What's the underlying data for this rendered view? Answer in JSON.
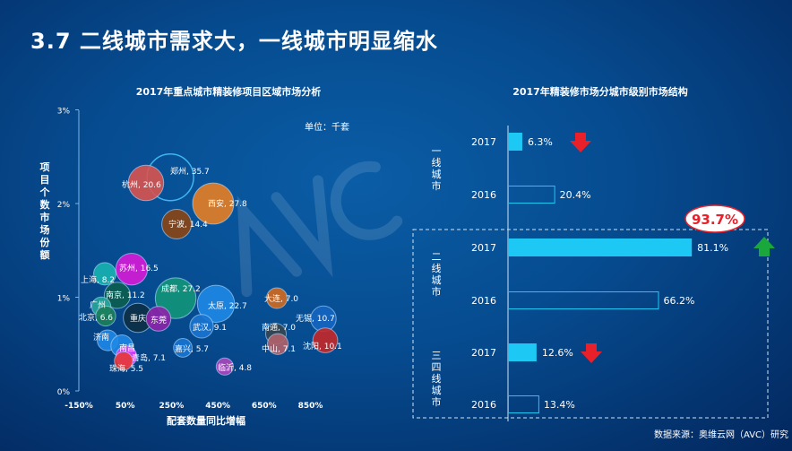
{
  "title": "3.7 二线城市需求大，一线城市明显缩水",
  "watermark": "AVC 奥维云网 ALL VIEW CLOUD",
  "source": "数据来源：奥维云网（AVC）研究",
  "chart_data": [
    {
      "type": "scatter",
      "subtype": "bubble",
      "title": "2017年重点城市精装修项目区域市场分析",
      "xlabel": "配套数量同比增幅",
      "ylabel": "项目个数市场份额",
      "unit_note": "单位：千套",
      "xlim": [
        -150,
        1000
      ],
      "ylim": [
        0,
        3
      ],
      "xticks": [
        "-150%",
        "50%",
        "250%",
        "450%",
        "650%",
        "850%"
      ],
      "xtick_values": [
        -150,
        50,
        250,
        450,
        650,
        850
      ],
      "yticks": [
        "0%",
        "1%",
        "2%",
        "3%"
      ],
      "ytick_values": [
        0,
        1,
        2,
        3
      ],
      "points": [
        {
          "city": "郑州",
          "x": 245,
          "y": 2.28,
          "size": 35.7,
          "color": "transparent",
          "stroke": "#3fb6f0",
          "label": "郑州, 35.7"
        },
        {
          "city": "杭州",
          "x": 140,
          "y": 2.22,
          "size": 20.6,
          "color": "#d9534f",
          "label": "杭州, 20.6"
        },
        {
          "city": "西安",
          "x": 430,
          "y": 2.0,
          "size": 27.8,
          "color": "#e67e22",
          "label": "西安, 27.8"
        },
        {
          "city": "宁波",
          "x": 272,
          "y": 1.78,
          "size": 14.4,
          "color": "#8b4513",
          "label": "宁波, 14.4"
        },
        {
          "city": "苏州",
          "x": 78,
          "y": 1.3,
          "size": 16.5,
          "color": "#d81bd8",
          "label": "苏州, 16.5"
        },
        {
          "city": "上海",
          "x": -38,
          "y": 1.25,
          "size": 8.2,
          "color": "#17b3b0",
          "label": "上海, 8.2"
        },
        {
          "city": "南京",
          "x": 16,
          "y": 1.02,
          "size": 11.2,
          "color": "#0b5e4e",
          "label": "南京, 11.2"
        },
        {
          "city": "成都",
          "x": 268,
          "y": 0.99,
          "size": 27.2,
          "color": "#13957a",
          "label": "成都, 27.2"
        },
        {
          "city": "太原",
          "x": 442,
          "y": 0.93,
          "size": 22.7,
          "color": "#1e88e5",
          "label": "太原, 22.7"
        },
        {
          "city": "大连",
          "x": 705,
          "y": 0.99,
          "size": 7.0,
          "color": "#d2691e",
          "label": "大连, 7.0"
        },
        {
          "city": "广州",
          "x": -53,
          "y": 0.9,
          "size": 6.0,
          "color": "#26a69a",
          "label": "广州"
        },
        {
          "city": "北京",
          "x": -34,
          "y": 0.8,
          "size": 6.6,
          "color": "#1b7f5a",
          "label": "北京, 6.6"
        },
        {
          "city": "重庆",
          "x": 105,
          "y": 0.78,
          "size": 14.0,
          "color": "#0d2f45",
          "label": "重庆"
        },
        {
          "city": "东莞",
          "x": 194,
          "y": 0.77,
          "size": 10.0,
          "color": "#8e24aa",
          "label": "东莞"
        },
        {
          "city": "武汉",
          "x": 380,
          "y": 0.69,
          "size": 9.1,
          "color": "#1976d2",
          "label": "武汉, 9.1"
        },
        {
          "city": "无锡",
          "x": 906,
          "y": 0.77,
          "size": 10.7,
          "color": "#1565c0",
          "label": "无锡, 10.7"
        },
        {
          "city": "沈阳",
          "x": 914,
          "y": 0.54,
          "size": 10.1,
          "color": "#c62828",
          "label": "沈阳, 10.1"
        },
        {
          "city": "南通",
          "x": 701,
          "y": 0.61,
          "size": 7.0,
          "color": "#37474f",
          "label": "南通, 7.0"
        },
        {
          "city": "中山",
          "x": 709,
          "y": 0.5,
          "size": 7.1,
          "color": "#b0626a",
          "label": "中山, 7.1"
        },
        {
          "city": "济南",
          "x": -26,
          "y": 0.54,
          "size": 7.0,
          "color": "#1e88e5",
          "label": "济南"
        },
        {
          "city": "南昌",
          "x": 36,
          "y": 0.48,
          "size": 8.0,
          "color": "#1e88e5",
          "label": "南昌"
        },
        {
          "city": "嘉兴",
          "x": 299,
          "y": 0.46,
          "size": 5.7,
          "color": "#1976d2",
          "label": "嘉兴, 5.7"
        },
        {
          "city": "青岛",
          "x": 55,
          "y": 0.37,
          "size": 7.1,
          "color": "#e040fb",
          "label": "青岛, 7.1"
        },
        {
          "city": "珠海",
          "x": 43,
          "y": 0.32,
          "size": 5.5,
          "color": "#e53935",
          "label": "珠海, 5.5"
        },
        {
          "city": "临沂",
          "x": 480,
          "y": 0.26,
          "size": 4.8,
          "color": "#ab47bc",
          "label": "临沂, 4.8"
        }
      ]
    },
    {
      "type": "bar",
      "orientation": "horizontal",
      "title": "2017年精装修市场分城市级别市场结构",
      "xlim": [
        0,
        100
      ],
      "groups": [
        {
          "name": "一线城市",
          "rows": [
            {
              "year": "2017",
              "value": 6.3,
              "label": "6.3%",
              "trend": "down"
            },
            {
              "year": "2016",
              "value": 20.4,
              "label": "20.4%"
            }
          ]
        },
        {
          "name": "二线城市",
          "rows": [
            {
              "year": "2017",
              "value": 81.1,
              "label": "81.1%",
              "trend": "up"
            },
            {
              "year": "2016",
              "value": 66.2,
              "label": "66.2%"
            }
          ]
        },
        {
          "name": "三四线城市",
          "rows": [
            {
              "year": "2017",
              "value": 12.6,
              "label": "12.6%",
              "trend": "down"
            },
            {
              "year": "2016",
              "value": 13.4,
              "label": "13.4%"
            }
          ]
        }
      ],
      "callout": "93.7%",
      "colors": {
        "bar2017": "#1ec8f5",
        "bar2016_stroke": "#1ec8f5",
        "down": "#e8202a",
        "up": "#1aa83c",
        "callout": "#e8202a"
      }
    }
  ]
}
